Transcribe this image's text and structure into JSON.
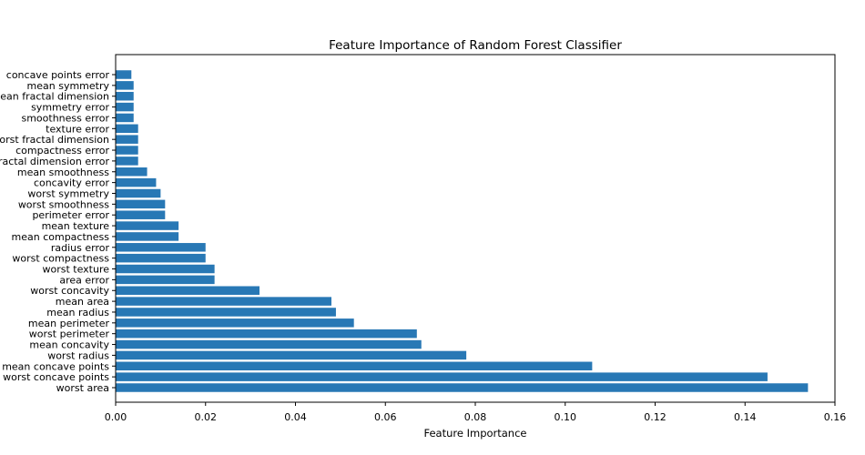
{
  "chart_data": {
    "type": "bar",
    "orientation": "horizontal",
    "title": "Feature Importance of Random Forest Classifier",
    "xlabel": "Feature Importance",
    "ylabel": "",
    "xlim": [
      0,
      0.16
    ],
    "x_ticks": [
      0.0,
      0.02,
      0.04,
      0.06,
      0.08,
      0.1,
      0.12,
      0.14,
      0.16
    ],
    "x_tick_labels": [
      "0.00",
      "0.02",
      "0.04",
      "0.06",
      "0.08",
      "0.10",
      "0.12",
      "0.14",
      "0.16"
    ],
    "grid": false,
    "bar_color": "#2878b5",
    "categories": [
      "worst area",
      "worst concave points",
      "mean concave points",
      "worst radius",
      "mean concavity",
      "worst perimeter",
      "mean perimeter",
      "mean radius",
      "mean area",
      "worst concavity",
      "area error",
      "worst texture",
      "worst compactness",
      "radius error",
      "mean compactness",
      "mean texture",
      "perimeter error",
      "worst smoothness",
      "worst symmetry",
      "concavity error",
      "mean smoothness",
      "fractal dimension error",
      "compactness error",
      "worst fractal dimension",
      "texture error",
      "smoothness error",
      "symmetry error",
      "mean fractal dimension",
      "mean symmetry",
      "concave points error"
    ],
    "values": [
      0.154,
      0.145,
      0.106,
      0.078,
      0.068,
      0.067,
      0.053,
      0.049,
      0.048,
      0.032,
      0.022,
      0.022,
      0.02,
      0.02,
      0.014,
      0.014,
      0.011,
      0.011,
      0.01,
      0.009,
      0.007,
      0.005,
      0.005,
      0.005,
      0.005,
      0.004,
      0.004,
      0.004,
      0.004,
      0.0035
    ]
  }
}
